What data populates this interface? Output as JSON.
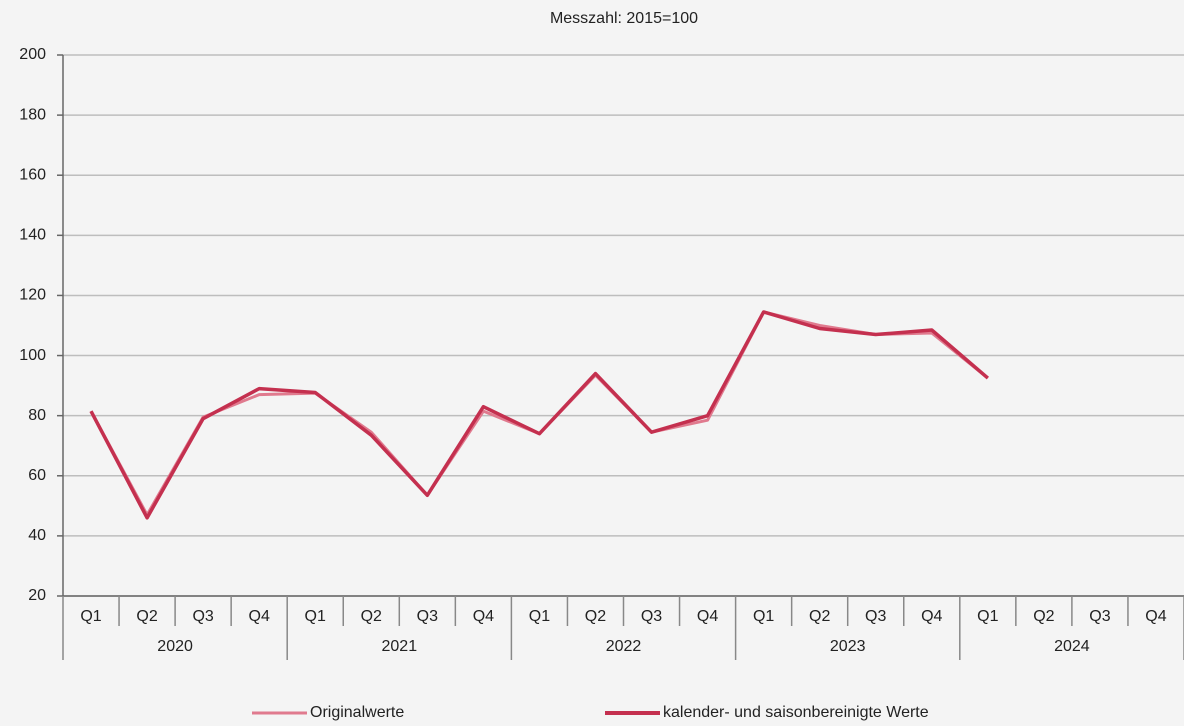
{
  "chart_data": {
    "type": "line",
    "title": "Messzahl: 2015=100",
    "categories": [
      "Q1",
      "Q2",
      "Q3",
      "Q4",
      "Q1",
      "Q2",
      "Q3",
      "Q4",
      "Q1",
      "Q2",
      "Q3",
      "Q4",
      "Q1",
      "Q2",
      "Q3",
      "Q4",
      "Q1",
      "Q2",
      "Q3",
      "Q4"
    ],
    "years": [
      "2020",
      "2021",
      "2022",
      "2023",
      "2024"
    ],
    "series": [
      {
        "name": "Originalwerte",
        "color": "#e07a8e",
        "values": [
          81.5,
          47,
          79.5,
          87,
          87.5,
          74.5,
          53.5,
          81.5,
          74,
          93.5,
          74.5,
          78.5,
          114.5,
          110,
          107,
          107.5,
          92.5,
          null,
          null,
          null
        ]
      },
      {
        "name": "kalender- und saisonbereinigte Werte",
        "color": "#c4304f",
        "values": [
          81.5,
          46,
          79,
          89,
          87.7,
          73.5,
          53.5,
          83,
          74,
          94,
          74.5,
          80,
          114.5,
          109,
          107,
          108.5,
          92.5,
          null,
          null,
          null
        ]
      }
    ],
    "ylim": [
      20,
      200
    ],
    "yticks": [
      20,
      40,
      60,
      80,
      100,
      120,
      140,
      160,
      180,
      200
    ],
    "grid": true
  }
}
